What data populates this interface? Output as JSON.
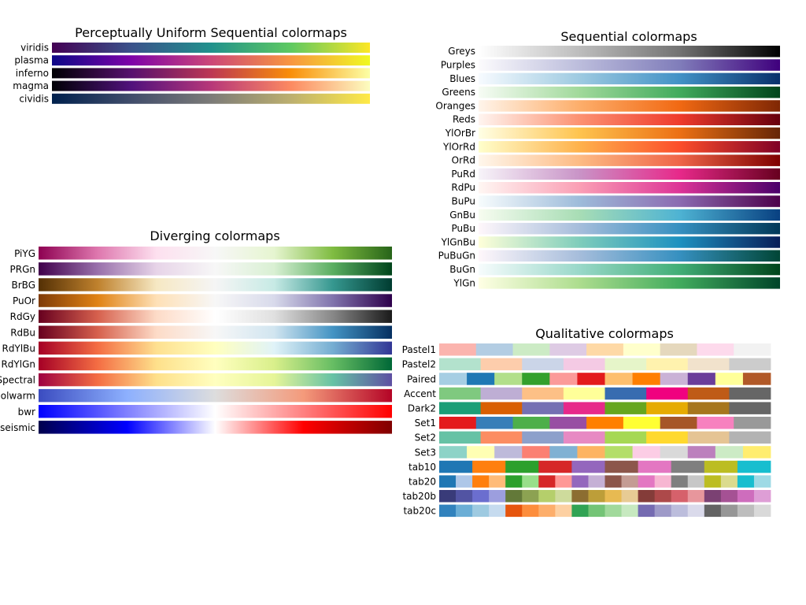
{
  "chart_data": [
    {
      "type": "heatmap",
      "title": "Perceptually Uniform Sequential colormaps",
      "colormaps": [
        {
          "name": "viridis",
          "stops": [
            "#440154",
            "#3b528b",
            "#21918c",
            "#5ec962",
            "#fde725"
          ]
        },
        {
          "name": "plasma",
          "stops": [
            "#0d0887",
            "#7e03a8",
            "#cc4778",
            "#f89540",
            "#f0f921"
          ]
        },
        {
          "name": "inferno",
          "stops": [
            "#000004",
            "#57106e",
            "#bc3754",
            "#f98e09",
            "#fcffa4"
          ]
        },
        {
          "name": "magma",
          "stops": [
            "#000004",
            "#51127c",
            "#b73779",
            "#fc8961",
            "#fcfdbf"
          ]
        },
        {
          "name": "cividis",
          "stops": [
            "#00204d",
            "#414d6b",
            "#7c7b78",
            "#bcaf6f",
            "#ffea46"
          ]
        }
      ]
    },
    {
      "type": "heatmap",
      "title": "Sequential colormaps",
      "colormaps": [
        {
          "name": "Greys",
          "stops": [
            "#ffffff",
            "#bdbdbd",
            "#737373",
            "#000000"
          ]
        },
        {
          "name": "Purples",
          "stops": [
            "#fcfbfd",
            "#bcbddc",
            "#807dba",
            "#3f007d"
          ]
        },
        {
          "name": "Blues",
          "stops": [
            "#f7fbff",
            "#9ecae1",
            "#4292c6",
            "#08306b"
          ]
        },
        {
          "name": "Greens",
          "stops": [
            "#f7fcf5",
            "#a1d99b",
            "#41ab5d",
            "#00441b"
          ]
        },
        {
          "name": "Oranges",
          "stops": [
            "#fff5eb",
            "#fdae6b",
            "#f16913",
            "#7f2704"
          ]
        },
        {
          "name": "Reds",
          "stops": [
            "#fff5f0",
            "#fc9272",
            "#ef3b2c",
            "#67000d"
          ]
        },
        {
          "name": "YlOrBr",
          "stops": [
            "#ffffe5",
            "#fec44f",
            "#ec7014",
            "#662506"
          ]
        },
        {
          "name": "YlOrRd",
          "stops": [
            "#ffffcc",
            "#feb24c",
            "#fc4e2a",
            "#800026"
          ]
        },
        {
          "name": "OrRd",
          "stops": [
            "#fff7ec",
            "#fdbb84",
            "#ef6548",
            "#7f0000"
          ]
        },
        {
          "name": "PuRd",
          "stops": [
            "#f7f4f9",
            "#c994c7",
            "#e7298a",
            "#67001f"
          ]
        },
        {
          "name": "RdPu",
          "stops": [
            "#fff7f3",
            "#fa9fb5",
            "#dd3497",
            "#49006a"
          ]
        },
        {
          "name": "BuPu",
          "stops": [
            "#f7fcfd",
            "#9ebcda",
            "#8c6bb1",
            "#4d004b"
          ]
        },
        {
          "name": "GnBu",
          "stops": [
            "#f7fcf0",
            "#a8ddb5",
            "#4eb3d3",
            "#084081"
          ]
        },
        {
          "name": "PuBu",
          "stops": [
            "#fff7fb",
            "#a6bddb",
            "#3690c0",
            "#023858"
          ]
        },
        {
          "name": "YlGnBu",
          "stops": [
            "#ffffd9",
            "#7fcdbb",
            "#1d91c0",
            "#081d58"
          ]
        },
        {
          "name": "PuBuGn",
          "stops": [
            "#fff7fb",
            "#a6bddb",
            "#3690c0",
            "#014636"
          ]
        },
        {
          "name": "BuGn",
          "stops": [
            "#f7fcfd",
            "#99d8c9",
            "#41ae76",
            "#00441b"
          ]
        },
        {
          "name": "YlGn",
          "stops": [
            "#ffffe5",
            "#addd8e",
            "#41ab5d",
            "#004529"
          ]
        }
      ]
    },
    {
      "type": "heatmap",
      "title": "Diverging colormaps",
      "colormaps": [
        {
          "name": "PiYG",
          "stops": [
            "#8e0152",
            "#de77ae",
            "#fde0ef",
            "#f7f7f7",
            "#e6f5d0",
            "#7fbc41",
            "#276419"
          ]
        },
        {
          "name": "PRGn",
          "stops": [
            "#40004b",
            "#9970ab",
            "#e7d4e8",
            "#f7f7f7",
            "#d9f0d3",
            "#5aae61",
            "#00441b"
          ]
        },
        {
          "name": "BrBG",
          "stops": [
            "#543005",
            "#bf812d",
            "#f6e8c3",
            "#f5f5f5",
            "#c7eae5",
            "#35978f",
            "#003c30"
          ]
        },
        {
          "name": "PuOr",
          "stops": [
            "#7f3b08",
            "#e08214",
            "#fee0b6",
            "#f7f7f7",
            "#d8daeb",
            "#8073ac",
            "#2d004b"
          ]
        },
        {
          "name": "RdGy",
          "stops": [
            "#67001f",
            "#d6604d",
            "#fddbc7",
            "#ffffff",
            "#e0e0e0",
            "#878787",
            "#1a1a1a"
          ]
        },
        {
          "name": "RdBu",
          "stops": [
            "#67001f",
            "#d6604d",
            "#fddbc7",
            "#f7f7f7",
            "#d1e5f0",
            "#4393c3",
            "#053061"
          ]
        },
        {
          "name": "RdYlBu",
          "stops": [
            "#a50026",
            "#f46d43",
            "#fee090",
            "#ffffbf",
            "#e0f3f8",
            "#74add1",
            "#313695"
          ]
        },
        {
          "name": "RdYlGn",
          "stops": [
            "#a50026",
            "#f46d43",
            "#fee08b",
            "#ffffbf",
            "#d9ef8b",
            "#66bd63",
            "#006837"
          ]
        },
        {
          "name": "Spectral",
          "stops": [
            "#9e0142",
            "#f46d43",
            "#fee08b",
            "#ffffbf",
            "#e6f598",
            "#66c2a5",
            "#5e4fa2"
          ]
        },
        {
          "name": "coolwarm",
          "stops": [
            "#3b4cc0",
            "#8db0fe",
            "#dddddd",
            "#f49a7b",
            "#b40426"
          ]
        },
        {
          "name": "bwr",
          "stops": [
            "#0000ff",
            "#ffffff",
            "#ff0000"
          ]
        },
        {
          "name": "seismic",
          "stops": [
            "#00004c",
            "#0000ff",
            "#ffffff",
            "#ff0000",
            "#800000"
          ]
        }
      ]
    },
    {
      "type": "heatmap",
      "title": "Qualitative colormaps",
      "colormaps": [
        {
          "name": "Pastel1",
          "colors": [
            "#fbb4ae",
            "#b3cde3",
            "#ccebc5",
            "#decbe4",
            "#fed9a6",
            "#ffffcc",
            "#e5d8bd",
            "#fddaec",
            "#f2f2f2"
          ]
        },
        {
          "name": "Pastel2",
          "colors": [
            "#b3e2cd",
            "#fdcdac",
            "#cbd5e8",
            "#f4cae4",
            "#e6f5c9",
            "#fff2ae",
            "#f1e2cc",
            "#cccccc"
          ]
        },
        {
          "name": "Paired",
          "colors": [
            "#a6cee3",
            "#1f78b4",
            "#b2df8a",
            "#33a02c",
            "#fb9a99",
            "#e31a1c",
            "#fdbf6f",
            "#ff7f00",
            "#cab2d6",
            "#6a3d9a",
            "#ffff99",
            "#b15928"
          ]
        },
        {
          "name": "Accent",
          "colors": [
            "#7fc97f",
            "#beaed4",
            "#fdc086",
            "#ffff99",
            "#386cb0",
            "#f0027f",
            "#bf5b17",
            "#666666"
          ]
        },
        {
          "name": "Dark2",
          "colors": [
            "#1b9e77",
            "#d95f02",
            "#7570b3",
            "#e7298a",
            "#66a61e",
            "#e6ab02",
            "#a6761d",
            "#666666"
          ]
        },
        {
          "name": "Set1",
          "colors": [
            "#e41a1c",
            "#377eb8",
            "#4daf4a",
            "#984ea3",
            "#ff7f00",
            "#ffff33",
            "#a65628",
            "#f781bf",
            "#999999"
          ]
        },
        {
          "name": "Set2",
          "colors": [
            "#66c2a5",
            "#fc8d62",
            "#8da0cb",
            "#e78ac3",
            "#a6d854",
            "#ffd92f",
            "#e5c494",
            "#b3b3b3"
          ]
        },
        {
          "name": "Set3",
          "colors": [
            "#8dd3c7",
            "#ffffb3",
            "#bebada",
            "#fb8072",
            "#80b1d3",
            "#fdb462",
            "#b3de69",
            "#fccde5",
            "#d9d9d9",
            "#bc80bd",
            "#ccebc5",
            "#ffed6f"
          ]
        },
        {
          "name": "tab10",
          "colors": [
            "#1f77b4",
            "#ff7f0e",
            "#2ca02c",
            "#d62728",
            "#9467bd",
            "#8c564b",
            "#e377c2",
            "#7f7f7f",
            "#bcbd22",
            "#17becf"
          ]
        },
        {
          "name": "tab20",
          "colors": [
            "#1f77b4",
            "#aec7e8",
            "#ff7f0e",
            "#ffbb78",
            "#2ca02c",
            "#98df8a",
            "#d62728",
            "#ff9896",
            "#9467bd",
            "#c5b0d5",
            "#8c564b",
            "#c49c94",
            "#e377c2",
            "#f7b6d2",
            "#7f7f7f",
            "#c7c7c7",
            "#bcbd22",
            "#dbdb8d",
            "#17becf",
            "#9edae5"
          ]
        },
        {
          "name": "tab20b",
          "colors": [
            "#393b79",
            "#5254a3",
            "#6b6ecf",
            "#9c9ede",
            "#637939",
            "#8ca252",
            "#b5cf6b",
            "#cedb9c",
            "#8c6d31",
            "#bd9e39",
            "#e7ba52",
            "#e7cb94",
            "#843c39",
            "#ad494a",
            "#d6616b",
            "#e7969c",
            "#7b4173",
            "#a55194",
            "#ce6dbd",
            "#de9ed6"
          ]
        },
        {
          "name": "tab20c",
          "colors": [
            "#3182bd",
            "#6baed6",
            "#9ecae1",
            "#c6dbef",
            "#e6550d",
            "#fd8d3c",
            "#fdae6b",
            "#fdd0a2",
            "#31a354",
            "#74c476",
            "#a1d99b",
            "#c7e9c0",
            "#756bb1",
            "#9e9ac8",
            "#bcbddc",
            "#dadaeb",
            "#636363",
            "#969696",
            "#bdbdbd",
            "#d9d9d9"
          ]
        }
      ]
    }
  ]
}
